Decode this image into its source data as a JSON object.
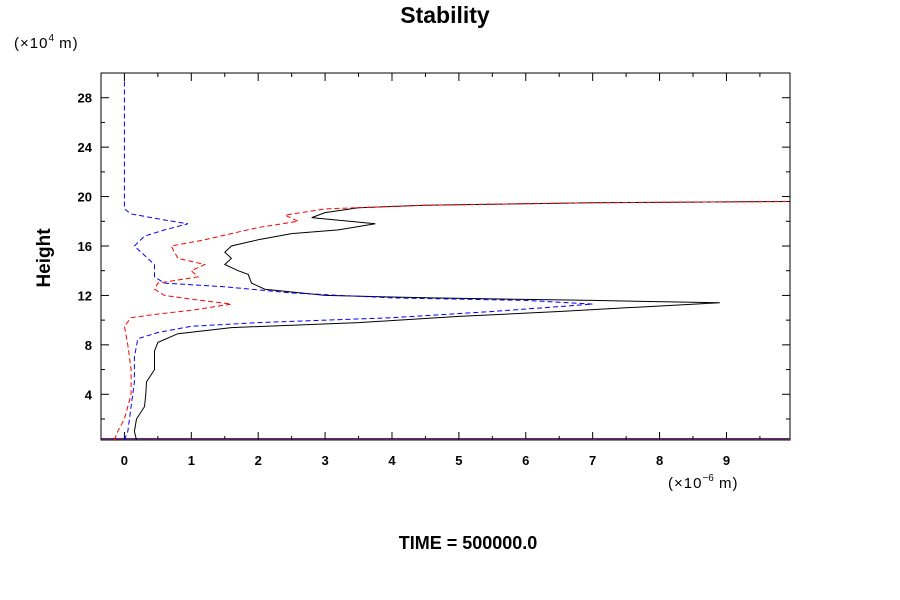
{
  "chart_data": {
    "type": "line",
    "title": "Stability",
    "ylabel": "Height",
    "xlabel": "",
    "y_unit": {
      "prefix": "(×10",
      "exp": "4",
      "suffix": " m)"
    },
    "x_unit": {
      "prefix": "(×10",
      "exp": "−6",
      "suffix": " m)"
    },
    "footer": "TIME = 500000.0",
    "xlim": [
      -0.35,
      9.95
    ],
    "ylim": [
      0.3,
      30.0
    ],
    "x_ticks": [
      0,
      1,
      2,
      3,
      4,
      5,
      6,
      7,
      8,
      9
    ],
    "y_ticks": [
      4,
      8,
      12,
      16,
      20,
      24,
      28
    ],
    "grid": false,
    "series": [
      {
        "color": "#000000",
        "dash": "solid",
        "points": [
          [
            0.18,
            0.3
          ],
          [
            0.15,
            1.0
          ],
          [
            0.18,
            2.0
          ],
          [
            0.3,
            3.0
          ],
          [
            0.32,
            4.0
          ],
          [
            0.33,
            5.0
          ],
          [
            0.45,
            6.0
          ],
          [
            0.45,
            7.5
          ],
          [
            0.5,
            8.2
          ],
          [
            0.8,
            8.9
          ],
          [
            1.6,
            9.4
          ],
          [
            3.5,
            9.8
          ],
          [
            5.0,
            10.3
          ],
          [
            6.5,
            10.7
          ],
          [
            7.5,
            11.0
          ],
          [
            8.9,
            11.4
          ],
          [
            7.0,
            11.6
          ],
          [
            4.6,
            11.8
          ],
          [
            3.0,
            12.0
          ],
          [
            2.1,
            12.5
          ],
          [
            1.9,
            13.0
          ],
          [
            1.85,
            13.7
          ],
          [
            1.7,
            14.0
          ],
          [
            1.5,
            14.5
          ],
          [
            1.6,
            15.0
          ],
          [
            1.5,
            15.5
          ],
          [
            1.6,
            16.0
          ],
          [
            2.0,
            16.5
          ],
          [
            2.5,
            17.0
          ],
          [
            3.2,
            17.3
          ],
          [
            3.75,
            17.8
          ],
          [
            2.8,
            18.3
          ],
          [
            3.0,
            18.7
          ],
          [
            3.5,
            19.1
          ],
          [
            4.5,
            19.3
          ],
          [
            7.0,
            19.5
          ],
          [
            10.0,
            19.6
          ]
        ]
      },
      {
        "color": "#0000ff",
        "dash": "dashed",
        "points": [
          [
            0.0,
            0.3
          ],
          [
            0.05,
            1.0
          ],
          [
            0.1,
            3.0
          ],
          [
            0.15,
            5.0
          ],
          [
            0.15,
            7.0
          ],
          [
            0.2,
            8.5
          ],
          [
            0.5,
            9.0
          ],
          [
            1.0,
            9.5
          ],
          [
            2.0,
            9.8
          ],
          [
            4.0,
            10.2
          ],
          [
            5.5,
            10.7
          ],
          [
            7.0,
            11.3
          ],
          [
            6.0,
            11.6
          ],
          [
            4.0,
            11.8
          ],
          [
            2.5,
            12.2
          ],
          [
            1.5,
            12.7
          ],
          [
            0.6,
            13.0
          ],
          [
            0.45,
            13.5
          ],
          [
            0.45,
            14.5
          ],
          [
            0.35,
            15.0
          ],
          [
            0.15,
            16.0
          ],
          [
            0.3,
            16.8
          ],
          [
            0.6,
            17.3
          ],
          [
            0.95,
            17.8
          ],
          [
            0.6,
            18.1
          ],
          [
            0.1,
            18.6
          ],
          [
            0.0,
            19.0
          ],
          [
            0.0,
            22.0
          ],
          [
            0.0,
            26.0
          ],
          [
            0.0,
            29.5
          ]
        ]
      },
      {
        "color": "#ff0000",
        "dash": "dashed",
        "points": [
          [
            -0.15,
            0.3
          ],
          [
            -0.1,
            1.0
          ],
          [
            0.0,
            2.0
          ],
          [
            0.05,
            3.0
          ],
          [
            0.1,
            4.0
          ],
          [
            0.1,
            6.0
          ],
          [
            0.05,
            8.0
          ],
          [
            0.0,
            9.5
          ],
          [
            0.1,
            10.2
          ],
          [
            0.5,
            10.5
          ],
          [
            1.0,
            10.8
          ],
          [
            1.6,
            11.3
          ],
          [
            1.0,
            11.7
          ],
          [
            0.6,
            12.0
          ],
          [
            0.45,
            12.5
          ],
          [
            0.5,
            13.0
          ],
          [
            1.1,
            13.5
          ],
          [
            1.0,
            14.0
          ],
          [
            1.2,
            14.5
          ],
          [
            0.8,
            15.0
          ],
          [
            0.7,
            16.0
          ],
          [
            1.2,
            16.5
          ],
          [
            1.6,
            17.0
          ],
          [
            2.0,
            17.5
          ],
          [
            2.6,
            18.0
          ],
          [
            2.4,
            18.5
          ],
          [
            3.0,
            19.0
          ],
          [
            4.5,
            19.3
          ],
          [
            7.0,
            19.5
          ],
          [
            10.0,
            19.6
          ]
        ]
      }
    ],
    "baseline_series": [
      {
        "color": "#000000",
        "y": 0.4
      },
      {
        "color": "#0000ff",
        "y": 0.35
      },
      {
        "color": "#ff0000",
        "y": 0.3
      }
    ]
  }
}
